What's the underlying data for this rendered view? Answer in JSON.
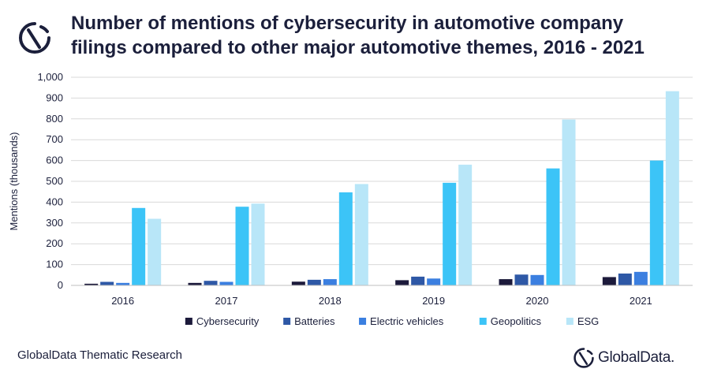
{
  "header": {
    "title_line1": "Number of mentions of cybersecurity in automotive company",
    "title_line2": "filings compared to other major automotive themes, 2016 - 2021"
  },
  "footer": {
    "source": "GlobalData Thematic Research",
    "brand": "GlobalData."
  },
  "icons": {
    "header_logo": "globaldata-logo-icon",
    "footer_logo": "globaldata-logo-icon"
  },
  "chart_data": {
    "type": "bar",
    "title": "Number of mentions of cybersecurity in automotive company filings compared to other major automotive themes, 2016 - 2021",
    "xlabel": "",
    "ylabel": "Mentions (thousands)",
    "ylim": [
      0,
      1000
    ],
    "yticks": [
      0,
      100,
      200,
      300,
      400,
      500,
      600,
      700,
      800,
      900,
      1000
    ],
    "ytick_labels": [
      "0",
      "100",
      "200",
      "300",
      "400",
      "500",
      "600",
      "700",
      "800",
      "900",
      "1,000"
    ],
    "grid": true,
    "legend_position": "bottom",
    "categories": [
      "2016",
      "2017",
      "2018",
      "2019",
      "2020",
      "2021"
    ],
    "series": [
      {
        "name": "Cybersecurity",
        "color": "#1c1a3b",
        "values": [
          8,
          12,
          18,
          25,
          30,
          40
        ]
      },
      {
        "name": "Batteries",
        "color": "#2e58a6",
        "values": [
          17,
          22,
          27,
          42,
          52,
          57
        ]
      },
      {
        "name": "Electric vehicles",
        "color": "#3b7fe0",
        "values": [
          12,
          17,
          30,
          33,
          50,
          65
        ]
      },
      {
        "name": "Geopolitics",
        "color": "#3cc4f7",
        "values": [
          372,
          378,
          447,
          493,
          562,
          600
        ]
      },
      {
        "name": "ESG",
        "color": "#b8e6f8",
        "values": [
          320,
          393,
          487,
          580,
          797,
          933
        ]
      }
    ]
  }
}
